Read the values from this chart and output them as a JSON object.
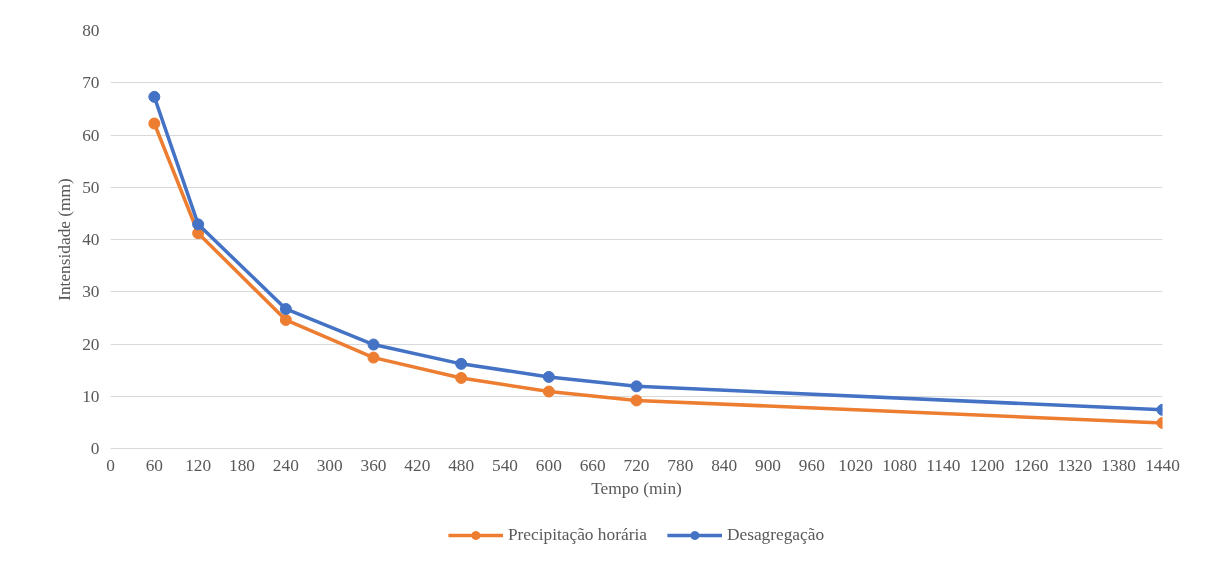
{
  "chart_data": {
    "type": "line",
    "xlabel": "Tempo (min)",
    "ylabel": "Intensidade (mm)",
    "x": [
      60,
      120,
      240,
      360,
      480,
      600,
      720,
      1440
    ],
    "series": [
      {
        "name": "Precipitação horária",
        "color": "#ed7d31",
        "values": [
          62.2,
          41.2,
          24.6,
          17.4,
          13.5,
          10.9,
          9.2,
          4.9
        ]
      },
      {
        "name": "Desagregação",
        "color": "#4472c4",
        "values": [
          67.3,
          42.9,
          26.7,
          19.9,
          16.2,
          13.7,
          11.9,
          7.4
        ]
      }
    ],
    "xlim": [
      0,
      1440
    ],
    "xticks": [
      0,
      60,
      120,
      180,
      240,
      300,
      360,
      420,
      480,
      540,
      600,
      660,
      720,
      780,
      840,
      900,
      960,
      1020,
      1080,
      1140,
      1200,
      1260,
      1320,
      1380,
      1440
    ],
    "ylim": [
      0,
      80
    ],
    "yticks": [
      0,
      10,
      20,
      30,
      40,
      50,
      60,
      70,
      80
    ],
    "grid": "y",
    "legend": "bottom",
    "marker": "circle",
    "line_style": "solid"
  }
}
